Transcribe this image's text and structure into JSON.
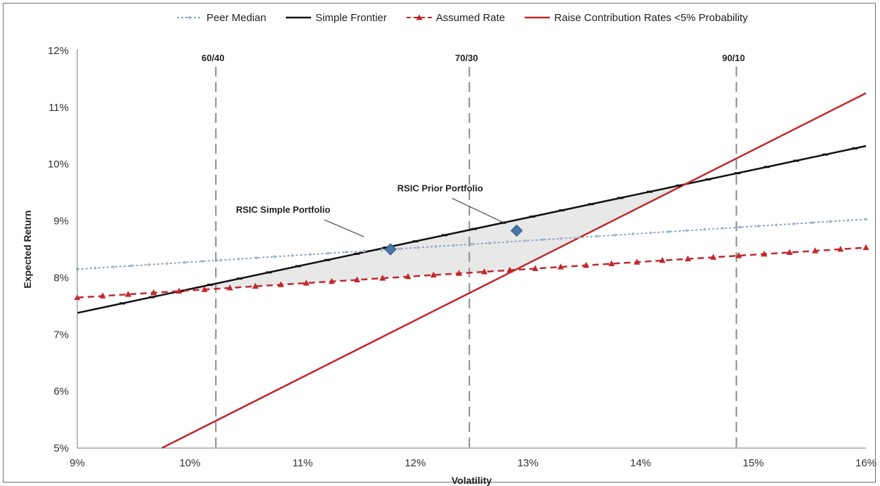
{
  "chart_data": {
    "type": "line",
    "title": "",
    "xlabel": "Volatility",
    "ylabel": "Expected Return",
    "xlim": [
      9,
      16
    ],
    "ylim": [
      5,
      12
    ],
    "x_ticks": [
      "9%",
      "10%",
      "11%",
      "12%",
      "13%",
      "14%",
      "15%",
      "16%"
    ],
    "y_ticks": [
      "5%",
      "6%",
      "7%",
      "8%",
      "9%",
      "10%",
      "11%",
      "12%"
    ],
    "grid": false,
    "legend_position": "top",
    "series": [
      {
        "name": "Peer Median",
        "style": "dotted",
        "color": "#7f9fbf",
        "marker": "circle",
        "x": [
          9,
          16
        ],
        "y": [
          8.15,
          9.03
        ]
      },
      {
        "name": "Simple Frontier",
        "style": "solid",
        "color": "#111111",
        "marker": "dash",
        "x": [
          9,
          16
        ],
        "y": [
          7.38,
          10.32
        ]
      },
      {
        "name": "Assumed Rate",
        "style": "dashed",
        "color": "#c0272d",
        "marker": "triangle",
        "x": [
          9,
          16
        ],
        "y": [
          7.65,
          8.53
        ]
      },
      {
        "name": "Raise Contribution Rates <5% Probability",
        "style": "solid",
        "color": "#c0272d",
        "marker": "none",
        "x": [
          9.75,
          16
        ],
        "y": [
          5.0,
          11.25
        ]
      }
    ],
    "vertical_lines": [
      {
        "label": "60/40",
        "x": 10.23
      },
      {
        "label": "70/30",
        "x": 12.48
      },
      {
        "label": "90/10",
        "x": 14.85
      }
    ],
    "points": [
      {
        "label": "RSIC Simple Portfolio",
        "x": 11.78,
        "y": 8.5
      },
      {
        "label": "RSIC Prior Portfolio",
        "x": 12.9,
        "y": 8.83
      }
    ],
    "shaded_region": {
      "description": "Area between Simple Frontier and the higher of Assumed Rate / Raise Contribution line",
      "color": "#e8e8e8"
    },
    "colors": {
      "accent_red": "#c0272d",
      "frontier": "#111111",
      "peer": "#7f9fbf",
      "points": "#4a78a6"
    }
  }
}
